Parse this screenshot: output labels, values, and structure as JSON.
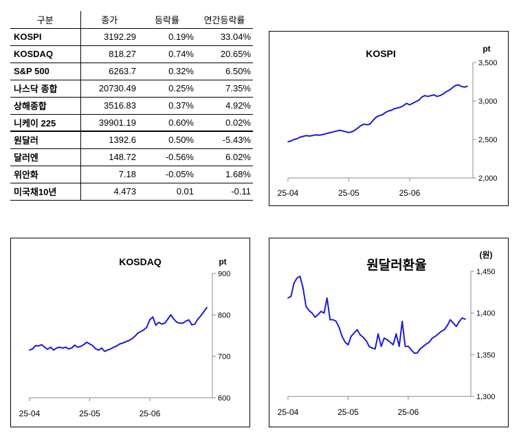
{
  "table": {
    "headers": [
      "구분",
      "종가",
      "등락률",
      "연간등락률"
    ],
    "rows": [
      {
        "name": "KOSPI",
        "close": "3192.29",
        "change": "0.19%",
        "ytd": "33.04%"
      },
      {
        "name": "KOSDAQ",
        "close": "818.27",
        "change": "0.74%",
        "ytd": "20.65%"
      },
      {
        "name": "S&P 500",
        "close": "6263.7",
        "change": "0.32%",
        "ytd": "6.50%"
      },
      {
        "name": "나스닥 종합",
        "close": "20730.49",
        "change": "0.25%",
        "ytd": "7.35%"
      },
      {
        "name": "상해종합",
        "close": "3516.83",
        "change": "0.37%",
        "ytd": "4.92%"
      },
      {
        "name": "니케이 225",
        "close": "39901.19",
        "change": "0.60%",
        "ytd": "0.02%"
      },
      {
        "name": "원달러",
        "close": "1392.6",
        "change": "0.50%",
        "ytd": "-5.43%"
      },
      {
        "name": "달러엔",
        "close": "148.72",
        "change": "-0.56%",
        "ytd": "6.02%"
      },
      {
        "name": "위안화",
        "close": "7.18",
        "change": "-0.05%",
        "ytd": "1.68%"
      },
      {
        "name": "미국채10년",
        "close": "4.473",
        "change": "0.01",
        "ytd": "-0.11"
      }
    ]
  },
  "colors": {
    "line": "#1a1adb",
    "axis": "#888888"
  },
  "chart_data": [
    {
      "type": "line",
      "title": "KOSPI",
      "unit": "pt",
      "ylim": [
        2000,
        3500
      ],
      "yticks": [
        2000,
        2500,
        3000,
        3500
      ],
      "ytick_labels": [
        "2,000",
        "2,500",
        "3,000",
        "3,500"
      ],
      "xticks": [
        0,
        20,
        40
      ],
      "xtick_labels": [
        "25-04",
        "25-05",
        "25-06"
      ],
      "x_count": 60,
      "values": [
        2470,
        2480,
        2500,
        2510,
        2530,
        2540,
        2550,
        2545,
        2550,
        2560,
        2555,
        2560,
        2570,
        2580,
        2590,
        2600,
        2610,
        2620,
        2610,
        2600,
        2590,
        2600,
        2620,
        2650,
        2680,
        2700,
        2690,
        2700,
        2750,
        2790,
        2810,
        2820,
        2850,
        2870,
        2880,
        2900,
        2910,
        2920,
        2940,
        2970,
        2950,
        2970,
        2990,
        3010,
        3050,
        3070,
        3060,
        3070,
        3080,
        3060,
        3070,
        3090,
        3120,
        3140,
        3170,
        3200,
        3210,
        3190,
        3180,
        3192
      ]
    },
    {
      "type": "line",
      "title": "KOSDAQ",
      "unit": "pt",
      "ylim": [
        600,
        900
      ],
      "yticks": [
        600,
        700,
        800,
        900
      ],
      "ytick_labels": [
        "600",
        "700",
        "800",
        "900"
      ],
      "xticks": [
        0,
        20,
        40
      ],
      "xtick_labels": [
        "25-04",
        "25-05",
        "25-06"
      ],
      "x_count": 60,
      "values": [
        715,
        718,
        726,
        725,
        728,
        722,
        717,
        722,
        715,
        720,
        722,
        720,
        722,
        718,
        720,
        727,
        722,
        724,
        728,
        734,
        730,
        726,
        718,
        715,
        720,
        712,
        715,
        718,
        722,
        725,
        730,
        732,
        735,
        738,
        742,
        748,
        756,
        760,
        764,
        770,
        788,
        795,
        775,
        782,
        778,
        780,
        790,
        800,
        790,
        782,
        780,
        780,
        785,
        788,
        776,
        778,
        790,
        798,
        808,
        818
      ]
    },
    {
      "type": "line",
      "title": "원달러환율",
      "unit": "(원)",
      "ylim": [
        1300,
        1450
      ],
      "yticks": [
        1300,
        1350,
        1400,
        1450
      ],
      "ytick_labels": [
        "1,300",
        "1,350",
        "1,400",
        "1,450"
      ],
      "xticks": [
        0,
        20,
        40
      ],
      "xtick_labels": [
        "25-04",
        "25-05",
        "25-06"
      ],
      "x_count": 60,
      "values": [
        1418,
        1420,
        1436,
        1442,
        1444,
        1430,
        1408,
        1403,
        1400,
        1395,
        1398,
        1402,
        1400,
        1418,
        1392,
        1392,
        1390,
        1383,
        1372,
        1365,
        1362,
        1372,
        1376,
        1380,
        1374,
        1371,
        1367,
        1360,
        1358,
        1357,
        1375,
        1360,
        1370,
        1368,
        1365,
        1362,
        1375,
        1360,
        1390,
        1360,
        1360,
        1356,
        1352,
        1352,
        1357,
        1360,
        1363,
        1365,
        1370,
        1372,
        1375,
        1378,
        1380,
        1385,
        1392,
        1388,
        1384,
        1390,
        1394,
        1392.6
      ]
    }
  ]
}
